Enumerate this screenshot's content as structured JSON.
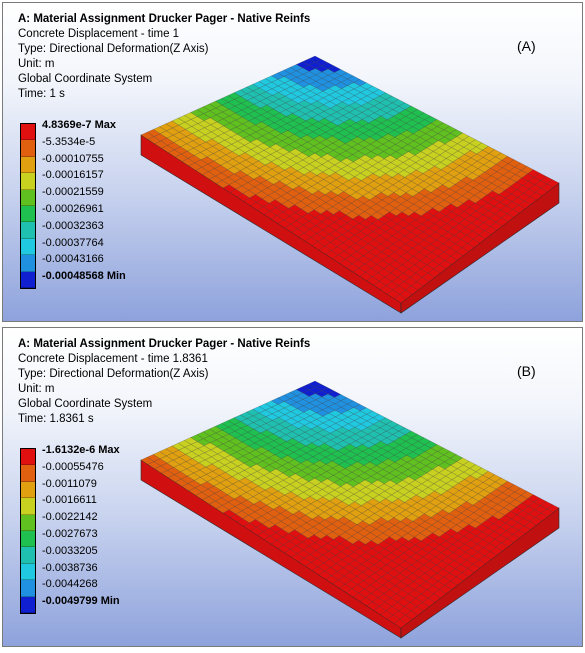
{
  "panels": [
    {
      "id": "a",
      "title": "A: Material Assignment Drucker Pager - Native Reinfs",
      "lines": [
        "Concrete Displacement - time 1",
        "Type: Directional Deformation(Z Axis)",
        "Unit: m",
        "Global Coordinate System",
        "Time: 1 s"
      ],
      "tag": "(A)",
      "legend": [
        "4.8369e-7 Max",
        "-5.3534e-5",
        "-0.00010755",
        "-0.00016157",
        "-0.00021559",
        "-0.00026961",
        "-0.00032363",
        "-0.00037764",
        "-0.00043166",
        "-0.00048568 Min"
      ]
    },
    {
      "id": "b",
      "title": "A: Material Assignment Drucker Pager - Native Reinfs",
      "lines": [
        "Concrete Displacement - time 1.8361",
        "Type: Directional Deformation(Z Axis)",
        "Unit: m",
        "Global Coordinate System",
        "Time: 1.8361 s"
      ],
      "tag": "(B)",
      "legend": [
        "-1.6132e-6 Max",
        "-0.00055476",
        "-0.0011079",
        "-0.0016611",
        "-0.0022142",
        "-0.0027673",
        "-0.0033205",
        "-0.0038736",
        "-0.0044268",
        "-0.0049799 Min"
      ]
    }
  ],
  "colors": {
    "contour": [
      "#e01010",
      "#e06010",
      "#e0a010",
      "#c8d020",
      "#60c020",
      "#20c050",
      "#20c0b0",
      "#20c8e0",
      "#2090e0",
      "#1020d0"
    ],
    "mesh_line": "#2a2a2a"
  }
}
